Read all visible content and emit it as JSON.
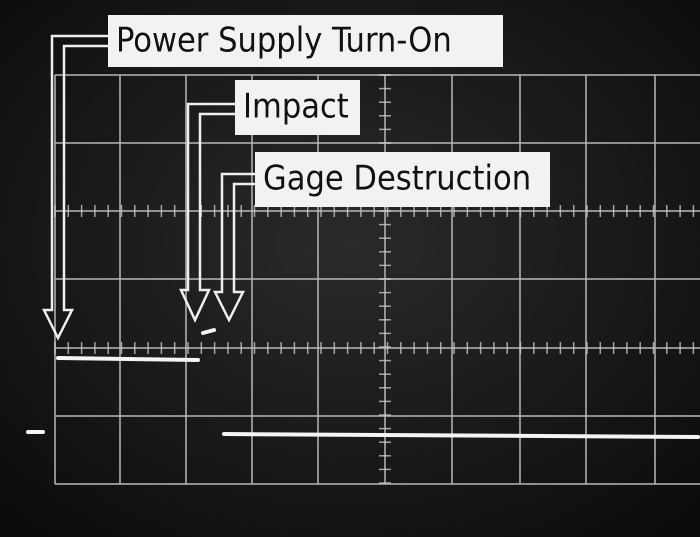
{
  "annotations": [
    {
      "label": "Power Supply Turn-On"
    },
    {
      "label": "Impact"
    },
    {
      "label": "Gage Destruction"
    }
  ]
}
